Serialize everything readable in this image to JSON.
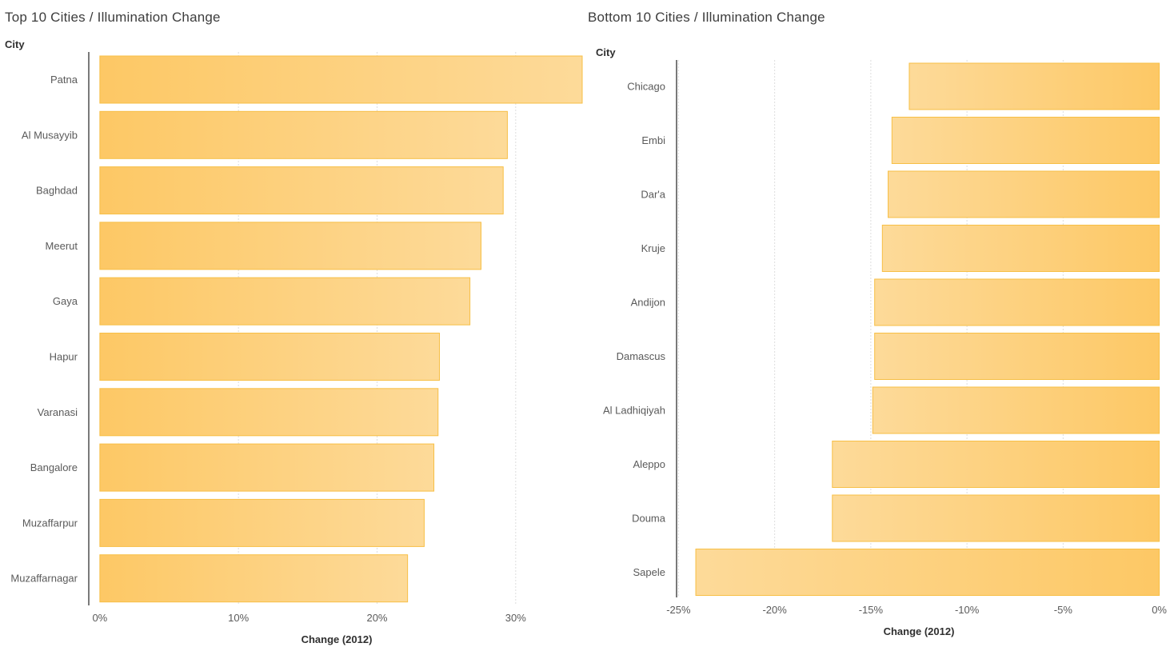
{
  "chart_data": [
    {
      "type": "bar",
      "orientation": "horizontal",
      "title": "Top 10 Cities / Illumination Change",
      "ylabel": "City",
      "xlabel": "Change (2012)",
      "categories": [
        "Patna",
        "Al Musayyib",
        "Baghdad",
        "Meerut",
        "Gaya",
        "Hapur",
        "Varanasi",
        "Bangalore",
        "Muzaffarpur",
        "Muzaffarnagar"
      ],
      "values": [
        34.8,
        29.4,
        29.1,
        27.5,
        26.7,
        24.5,
        24.4,
        24.1,
        23.4,
        22.2
      ],
      "unit": "%",
      "xlim": [
        -0.8,
        34.8
      ],
      "xticks": [
        0,
        10,
        20,
        30
      ],
      "xtick_labels": [
        "0%",
        "10%",
        "20%",
        "30%"
      ],
      "grid": true,
      "bar_color": "#fdc85f"
    },
    {
      "type": "bar",
      "orientation": "horizontal",
      "title": "Bottom 10 Cities / Illumination Change",
      "ylabel": "City",
      "xlabel": "Change (2012)",
      "categories": [
        "Chicago",
        "Embi",
        "Dar'a",
        "Kruje",
        "Andijon",
        "Damascus",
        "Al Ladhiqiyah",
        "Aleppo",
        "Douma",
        "Sapele"
      ],
      "values": [
        -13.0,
        -13.9,
        -14.1,
        -14.4,
        -14.8,
        -14.8,
        -14.9,
        -17.0,
        -17.0,
        -24.1
      ],
      "unit": "%",
      "xlim": [
        -25.1,
        0.1
      ],
      "xticks": [
        -25,
        -20,
        -15,
        -10,
        -5,
        0
      ],
      "xtick_labels": [
        "-25%",
        "-20%",
        "-15%",
        "-10%",
        "-5%",
        "0%"
      ],
      "grid": true,
      "bar_color": "#fdc85f"
    }
  ]
}
